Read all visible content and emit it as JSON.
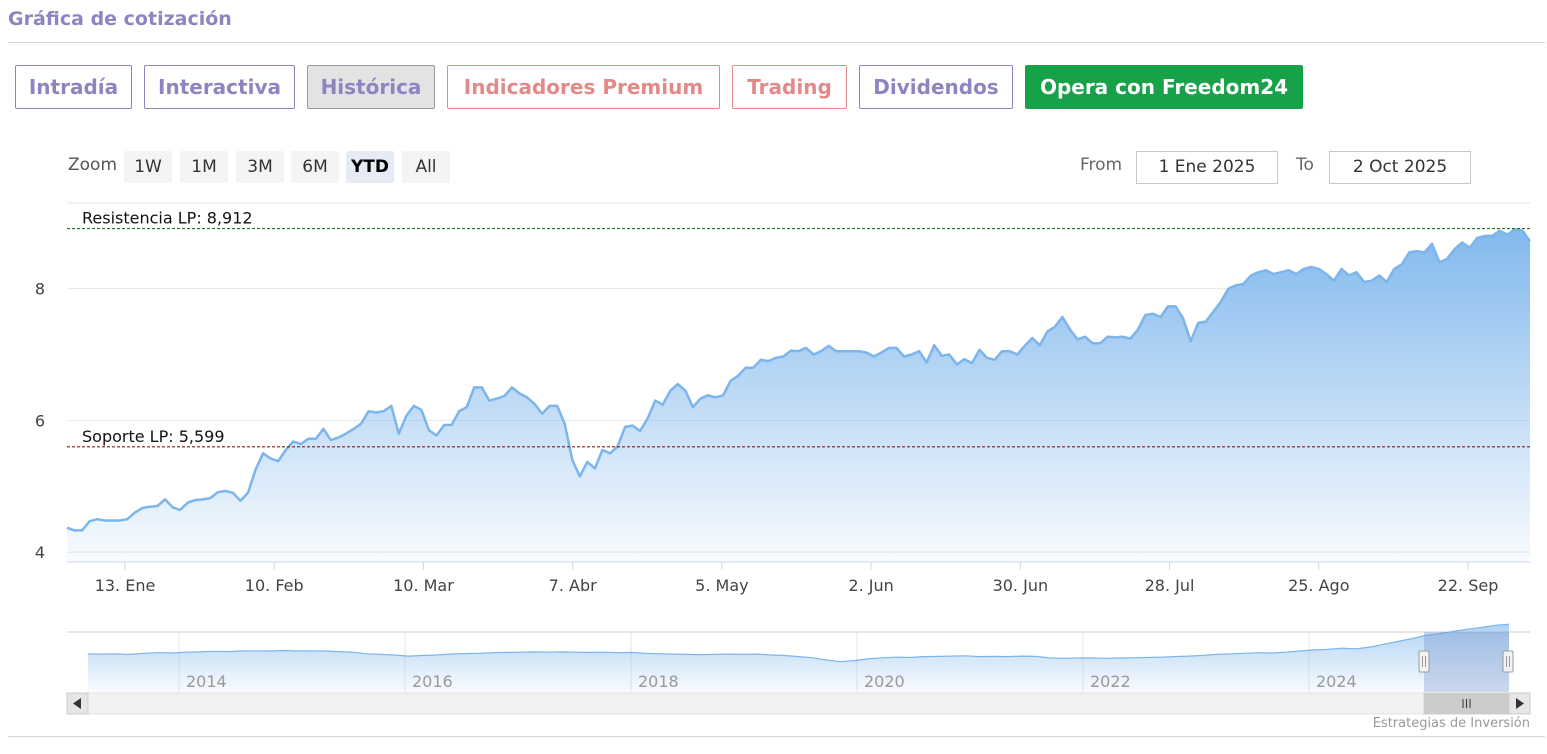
{
  "header": {
    "title": "Gráfica de cotización"
  },
  "tabs": [
    {
      "label": "Intradía",
      "style": "normal"
    },
    {
      "label": "Interactiva",
      "style": "normal"
    },
    {
      "label": "Histórica",
      "style": "active"
    },
    {
      "label": "Indicadores Premium",
      "style": "premium"
    },
    {
      "label": "Trading",
      "style": "premium"
    },
    {
      "label": "Dividendos",
      "style": "normal"
    },
    {
      "label": "Opera con Freedom24",
      "style": "cta"
    }
  ],
  "zoom": {
    "label": "Zoom",
    "options": [
      "1W",
      "1M",
      "3M",
      "6M",
      "YTD",
      "All"
    ],
    "selected": "YTD"
  },
  "range": {
    "from_label": "From",
    "from_value": "1 Ene 2025",
    "to_label": "To",
    "to_value": "2 Oct 2025"
  },
  "credits": "Estrategias de Inversión",
  "colors": {
    "accent": "#8f84c1",
    "premium": "#e28a8a",
    "cta": "#17a24a",
    "line": "#7cb5ec"
  },
  "chart_data": {
    "type": "area",
    "ylim": [
      3.85,
      9.3
    ],
    "y_ticks": [
      4,
      6,
      8
    ],
    "y_tick_labels": [
      "4",
      "6",
      "8"
    ],
    "x_tick_labels": [
      "13. Ene",
      "10. Feb",
      "10. Mar",
      "7. Abr",
      "5. May",
      "2. Jun",
      "30. Jun",
      "28. Jul",
      "25. Ago",
      "22. Sep"
    ],
    "grid": true,
    "series": [
      {
        "values": [
          4.37,
          4.33,
          4.33,
          4.47,
          4.5,
          4.48,
          4.48,
          4.48,
          4.5,
          4.6,
          4.67,
          4.69,
          4.7,
          4.8,
          4.68,
          4.64,
          4.75,
          4.79,
          4.8,
          4.82,
          4.91,
          4.93,
          4.9,
          4.78,
          4.9,
          5.25,
          5.5,
          5.42,
          5.38,
          5.55,
          5.68,
          5.64,
          5.72,
          5.72,
          5.87,
          5.7,
          5.74,
          5.8,
          5.87,
          5.95,
          6.14,
          6.12,
          6.14,
          6.22,
          5.8,
          6.07,
          6.22,
          6.16,
          5.85,
          5.77,
          5.93,
          5.93,
          6.14,
          6.2,
          6.5,
          6.5,
          6.3,
          6.33,
          6.37,
          6.5,
          6.41,
          6.35,
          6.25,
          6.1,
          6.22,
          6.22,
          5.95,
          5.4,
          5.15,
          5.37,
          5.27,
          5.55,
          5.5,
          5.6,
          5.9,
          5.92,
          5.84,
          6.03,
          6.3,
          6.24,
          6.45,
          6.55,
          6.45,
          6.2,
          6.33,
          6.38,
          6.35,
          6.38,
          6.6,
          6.68,
          6.8,
          6.8,
          6.92,
          6.9,
          6.95,
          6.97,
          7.06,
          7.05,
          7.1,
          7.0,
          7.05,
          7.13,
          7.05,
          7.05,
          7.05,
          7.05,
          7.03,
          6.97,
          7.03,
          7.1,
          7.1,
          6.97,
          7.0,
          7.05,
          6.88,
          7.14,
          6.98,
          7.0,
          6.85,
          6.93,
          6.87,
          7.07,
          6.95,
          6.92,
          7.05,
          7.05,
          7.0,
          7.13,
          7.25,
          7.14,
          7.35,
          7.42,
          7.57,
          7.38,
          7.23,
          7.27,
          7.17,
          7.17,
          7.27,
          7.26,
          7.27,
          7.24,
          7.38,
          7.6,
          7.62,
          7.57,
          7.73,
          7.73,
          7.55,
          7.2,
          7.48,
          7.5,
          7.65,
          7.8,
          8.0,
          8.05,
          8.07,
          8.2,
          8.25,
          8.28,
          8.22,
          8.25,
          8.28,
          8.22,
          8.3,
          8.33,
          8.3,
          8.22,
          8.12,
          8.3,
          8.2,
          8.25,
          8.1,
          8.12,
          8.2,
          8.1,
          8.3,
          8.37,
          8.55,
          8.57,
          8.55,
          8.68,
          8.4,
          8.45,
          8.6,
          8.7,
          8.62,
          8.77,
          8.8,
          8.8,
          8.88,
          8.82,
          8.9,
          8.88,
          8.72
        ]
      }
    ],
    "reference_lines": [
      {
        "label": "Resistencia LP: 8,912",
        "value": 8.912,
        "color": "#1a7a1a"
      },
      {
        "label": "Soporte LP: 5,599",
        "value": 5.599,
        "color": "#8b1a1a"
      }
    ],
    "navigator": {
      "x_tick_labels": [
        "2014",
        "2016",
        "2018",
        "2020",
        "2022",
        "2024"
      ],
      "values": [
        3.6,
        3.55,
        3.6,
        3.5,
        3.7,
        3.8,
        3.75,
        3.9,
        3.95,
        4.05,
        4.0,
        4.1,
        4.15,
        4.1,
        4.2,
        4.1,
        4.15,
        4.1,
        4.0,
        3.9,
        3.6,
        3.5,
        3.4,
        3.2,
        3.3,
        3.4,
        3.55,
        3.65,
        3.7,
        3.8,
        3.85,
        3.9,
        3.95,
        3.9,
        3.95,
        3.9,
        3.85,
        3.9,
        3.8,
        3.85,
        3.7,
        3.6,
        3.55,
        3.5,
        3.45,
        3.5,
        3.55,
        3.5,
        3.55,
        3.4,
        3.3,
        3.1,
        2.9,
        2.5,
        2.2,
        2.4,
        2.7,
        2.9,
        3.0,
        2.95,
        3.1,
        3.15,
        3.2,
        3.25,
        3.1,
        3.15,
        3.1,
        3.2,
        3.15,
        2.9,
        2.8,
        2.85,
        2.9,
        2.8,
        2.85,
        2.9,
        2.95,
        3.0,
        3.1,
        3.2,
        3.3,
        3.5,
        3.6,
        3.7,
        3.8,
        3.75,
        3.9,
        4.1,
        4.3,
        4.4,
        4.6,
        4.5,
        4.8,
        5.3,
        5.8,
        6.3,
        6.9,
        7.2,
        7.6,
        8.0,
        8.3,
        8.7,
        8.9
      ]
    }
  }
}
